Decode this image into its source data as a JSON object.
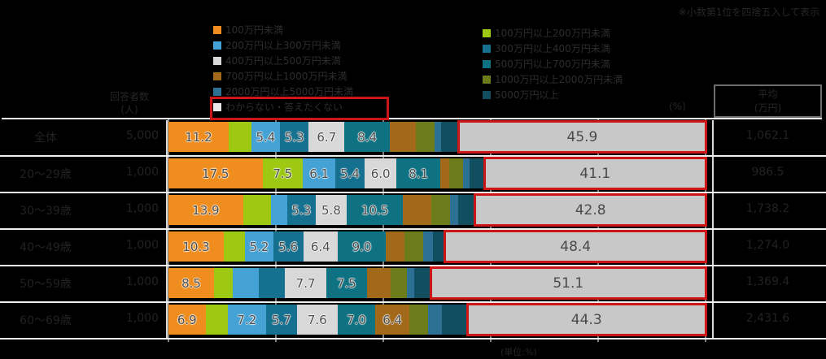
{
  "notes": {
    "top_right": "※小数第1位を四捨五入して表示",
    "bottom": "(単位:%)",
    "percent_axis": "(%)"
  },
  "header": {
    "respondents_line1": "回答者数",
    "respondents_line2": "(人)",
    "avg_line1": "平均",
    "avg_line2": "(万円)"
  },
  "colors": {
    "background": "#000000",
    "highlight_border": "#ce1515",
    "separator": "#f0f0f0",
    "dark_text": "#262626"
  },
  "chart_data": {
    "type": "bar",
    "stacked": true,
    "orientation": "horizontal",
    "xlim": [
      0,
      100
    ],
    "gridlines_percent": [
      0,
      20,
      40,
      60,
      80,
      100
    ],
    "series": [
      {
        "name": "100万円未満",
        "color": "#ef8e1e"
      },
      {
        "name": "100万円以上200万円未満",
        "color": "#9ec912"
      },
      {
        "name": "200万円以上300万円未満",
        "color": "#45a2d5"
      },
      {
        "name": "300万円以上400万円未満",
        "color": "#16708f"
      },
      {
        "name": "400万円以上500万円未満",
        "color": "#d8d8d8"
      },
      {
        "name": "500万円以上700万円未満",
        "color": "#0f7282"
      },
      {
        "name": "700万円以上1000万円未満",
        "color": "#a2691b"
      },
      {
        "name": "1000万円以上2000万円未満",
        "color": "#6c7c1b"
      },
      {
        "name": "2000万円以上5000万円未満",
        "color": "#2c7193"
      },
      {
        "name": "5000万円以上",
        "color": "#114e60"
      },
      {
        "name": "わからない・答えたくない",
        "color": "#c8c8c8"
      }
    ],
    "legend_left_indices": [
      0,
      2,
      4,
      6,
      8,
      10
    ],
    "legend_right_indices": [
      1,
      3,
      5,
      7,
      9
    ],
    "highlighted_series_index": 10,
    "categories": [
      "全体",
      "20〜29歳",
      "30〜39歳",
      "40〜49歳",
      "50〜59歳",
      "60〜69歳"
    ],
    "respondents": [
      "5,000",
      "1,000",
      "1,000",
      "1,000",
      "1,000",
      "1,000"
    ],
    "averages": [
      "1,062.1",
      "986.5",
      "1,738.2",
      "1,274.0",
      "1,369.4",
      "2,431.6"
    ],
    "rows": [
      {
        "values": [
          11.2,
          4.2,
          5.4,
          5.3,
          6.7,
          8.4,
          4.8,
          3.5,
          1.2,
          3.4,
          45.9
        ],
        "labeled": [
          0,
          2,
          3,
          4,
          5,
          10
        ]
      },
      {
        "values": [
          17.5,
          7.5,
          6.1,
          5.4,
          6.0,
          8.1,
          1.7,
          2.5,
          1.3,
          2.8,
          41.1
        ],
        "labeled": [
          0,
          1,
          2,
          3,
          4,
          5,
          10
        ]
      },
      {
        "values": [
          13.9,
          5.2,
          3.0,
          5.3,
          5.8,
          10.5,
          5.3,
          3.4,
          1.6,
          3.2,
          42.8
        ],
        "labeled": [
          0,
          3,
          4,
          5,
          10
        ]
      },
      {
        "values": [
          10.3,
          4.0,
          5.2,
          5.6,
          6.4,
          9.0,
          3.5,
          3.4,
          1.8,
          2.4,
          48.4
        ],
        "labeled": [
          0,
          2,
          3,
          4,
          5,
          10
        ]
      },
      {
        "values": [
          8.5,
          3.4,
          4.9,
          4.9,
          7.7,
          7.5,
          4.4,
          3.1,
          1.4,
          3.1,
          51.1
        ],
        "labeled": [
          0,
          4,
          5,
          10
        ]
      },
      {
        "values": [
          6.9,
          4.1,
          7.2,
          5.7,
          7.6,
          7.0,
          6.4,
          3.5,
          2.5,
          4.8,
          44.3
        ],
        "labeled": [
          0,
          2,
          3,
          4,
          5,
          6,
          10
        ]
      }
    ]
  }
}
